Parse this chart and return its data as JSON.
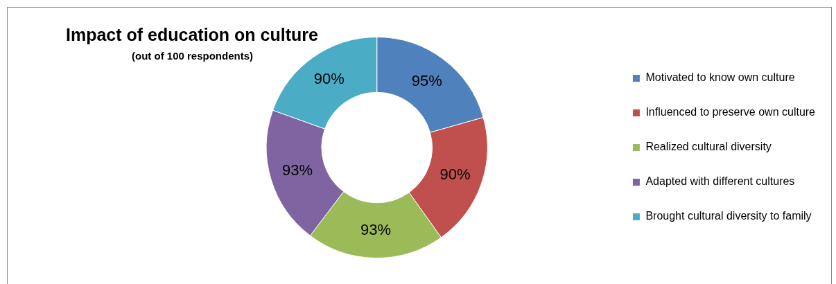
{
  "chart_data": {
    "type": "donut",
    "title": "Impact of education on culture",
    "subtitle": "(out of 100 respondents)",
    "categories": [
      "Motivated to know own culture",
      "Influenced to preserve own culture",
      "Realized cultural diversity",
      "Adapted with different cultures",
      "Brought cultural diversity to family"
    ],
    "values": [
      95,
      90,
      93,
      93,
      90
    ],
    "value_labels": [
      "95%",
      "90%",
      "93%",
      "93%",
      "90%"
    ],
    "colors": [
      "#4f81bd",
      "#c0504d",
      "#9bbb59",
      "#8064a2",
      "#4bacc6"
    ],
    "legend": "right"
  }
}
